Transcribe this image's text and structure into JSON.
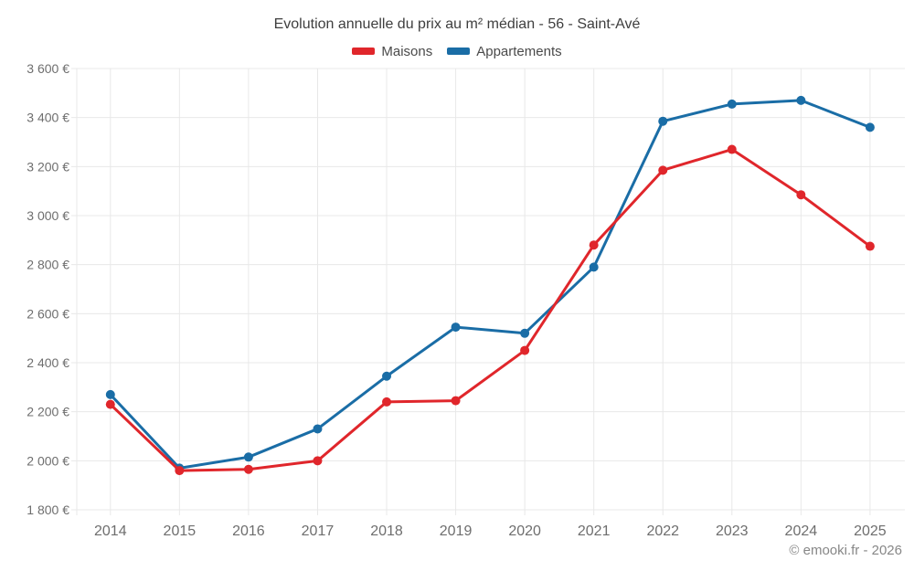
{
  "title": "Evolution annuelle du prix au m² médian - 56 - Saint-Avé",
  "footer": "© emooki.fr - 2026",
  "chart_data": {
    "type": "line",
    "title": "Evolution annuelle du prix au m² médian - 56 - Saint-Avé",
    "categories": [
      "2014",
      "2015",
      "2016",
      "2017",
      "2018",
      "2019",
      "2020",
      "2021",
      "2022",
      "2023",
      "2024",
      "2025"
    ],
    "series": [
      {
        "name": "Maisons",
        "color": "#e0262b",
        "values": [
          2230,
          1960,
          1965,
          2000,
          2240,
          2245,
          2450,
          2880,
          3185,
          3270,
          3085,
          2875
        ]
      },
      {
        "name": "Appartements",
        "color": "#1a6da6",
        "values": [
          2270,
          1970,
          2015,
          2130,
          2345,
          2545,
          2520,
          2790,
          3385,
          3455,
          3470,
          3360
        ]
      }
    ],
    "ylim": [
      1800,
      3600
    ],
    "ytick_step": 200,
    "ytick_labels": [
      "1 800 €",
      "2 000 €",
      "2 200 €",
      "2 400 €",
      "2 600 €",
      "2 800 €",
      "3 000 €",
      "3 200 €",
      "3 400 €",
      "3 600 €"
    ],
    "xlabel": "",
    "ylabel": "",
    "grid": true,
    "legend_position": "top",
    "grid_color": "#e8e8e8",
    "tick_color": "#6e6e6e"
  }
}
